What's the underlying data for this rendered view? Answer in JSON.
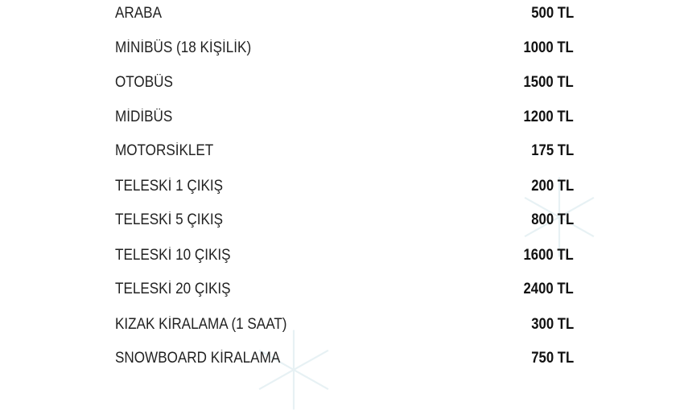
{
  "price_list": [
    {
      "label": "ARABA",
      "price": "500 TL"
    },
    {
      "label": "MİNİBÜS (18 KİŞİLİK)",
      "price": "1000 TL"
    },
    {
      "label": "OTOBÜS",
      "price": "1500 TL"
    },
    {
      "label": "MİDİBÜS",
      "price": "1200 TL"
    },
    {
      "label": "MOTORSİKLET",
      "price": "175 TL"
    },
    {
      "label": "TELESKİ 1 ÇIKIŞ",
      "price": "200 TL"
    },
    {
      "label": "TELESKİ 5 ÇIKIŞ",
      "price": "800 TL"
    },
    {
      "label": "TELESKİ 10 ÇIKIŞ",
      "price": "1600 TL"
    },
    {
      "label": "TELESKİ 20 ÇIKIŞ",
      "price": "2400 TL"
    },
    {
      "label": "KIZAK KİRALAMA (1 SAAT)",
      "price": "300 TL"
    },
    {
      "label": "SNOWBOARD KİRALAMA",
      "price": "750 TL"
    }
  ],
  "decorations": {
    "icon": "snowflake-icon",
    "color": "#7fb8c8"
  }
}
